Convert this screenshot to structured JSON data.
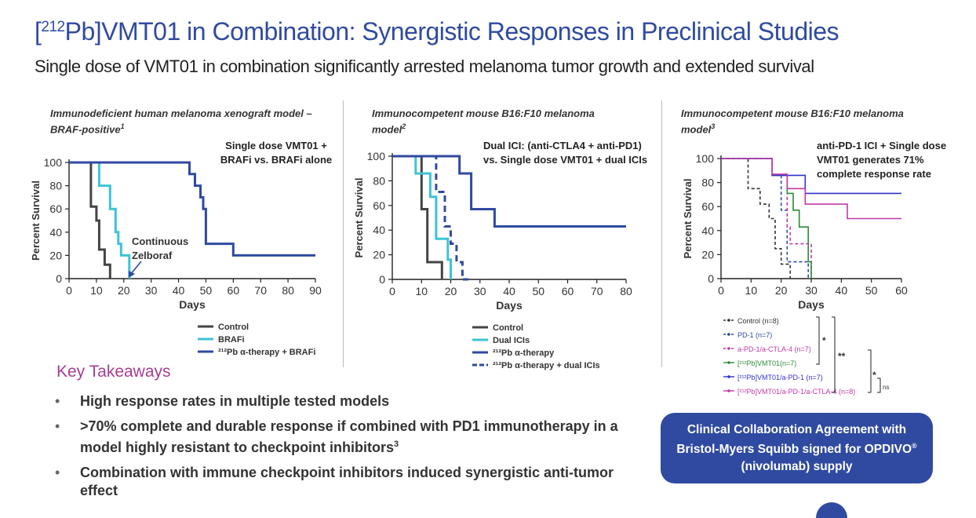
{
  "header": {
    "title_sup": "212",
    "title_rest": "Pb]VMT01 in Combination: Synergistic Responses in Preclinical Studies",
    "title_open": "[",
    "subtitle": "Single dose of VMT01 in combination significantly arrested melanoma tumor growth and extended survival"
  },
  "chart_data": [
    {
      "type": "line",
      "subtype": "kaplan-meier",
      "title_line1": "Immunodeficient human melanoma xenograft model –",
      "title_line2": "BRAF-positive",
      "title_sup": "1",
      "xlabel": "Days",
      "ylabel": "Percent Survival",
      "xlim": [
        0,
        90
      ],
      "ylim": [
        0,
        100
      ],
      "xticks": [
        0,
        10,
        20,
        30,
        40,
        50,
        60,
        70,
        80,
        90
      ],
      "yticks": [
        0,
        20,
        40,
        60,
        80,
        100
      ],
      "annotation_line1": "Single dose VMT01 +",
      "annotation_line2": "BRAFi vs. BRAFi alone",
      "arrow_note_line1": "Continuous",
      "arrow_note_line2": "Zelboraf",
      "legend": [
        "Control",
        "BRAFi",
        "²¹²Pb α-therapy + BRAFi"
      ],
      "series": [
        {
          "name": "Control",
          "color": "#444444",
          "dash": false,
          "x": [
            0,
            8,
            8,
            10,
            10,
            11,
            11,
            13,
            13,
            15,
            15
          ],
          "y": [
            100,
            100,
            62,
            62,
            50,
            50,
            25,
            25,
            12,
            12,
            0
          ]
        },
        {
          "name": "BRAFi",
          "color": "#3ec3d6",
          "dash": false,
          "x": [
            0,
            11,
            11,
            15,
            15,
            17,
            17,
            18,
            18,
            19,
            19,
            20,
            20,
            22,
            22
          ],
          "y": [
            100,
            100,
            80,
            80,
            60,
            60,
            40,
            40,
            30,
            30,
            20,
            20,
            20,
            20,
            0
          ]
        },
        {
          "name": "²¹²Pb α-therapy + BRAFi",
          "color": "#2f4aa0",
          "dash": false,
          "x": [
            0,
            44,
            44,
            46,
            46,
            48,
            48,
            49,
            49,
            50,
            50,
            60,
            60,
            90
          ],
          "y": [
            100,
            100,
            90,
            90,
            80,
            80,
            70,
            70,
            60,
            60,
            30,
            30,
            20,
            20
          ]
        }
      ]
    },
    {
      "type": "line",
      "subtype": "kaplan-meier",
      "title_line1": "Immunocompetent mouse B16:F10 melanoma",
      "title_line2": "model",
      "title_sup": "2",
      "xlabel": "Days",
      "ylabel": "Percent Survival",
      "xlim": [
        0,
        80
      ],
      "ylim": [
        0,
        100
      ],
      "xticks": [
        0,
        10,
        20,
        30,
        40,
        50,
        60,
        70,
        80
      ],
      "yticks": [
        0,
        20,
        40,
        60,
        80,
        100
      ],
      "annotation_line1": "Dual ICI: (anti-CTLA4 + anti-PD1)",
      "annotation_line2": "vs.  Single dose VMT01 + dual ICIs",
      "legend": [
        "Control",
        "Dual ICIs",
        "²¹²Pb α-therapy",
        "²¹²Pb α-therapy + dual ICIs"
      ],
      "series": [
        {
          "name": "Control",
          "color": "#444444",
          "dash": false,
          "x": [
            0,
            10,
            10,
            12,
            12,
            17,
            17
          ],
          "y": [
            100,
            100,
            57,
            57,
            14,
            14,
            0
          ]
        },
        {
          "name": "Dual ICIs",
          "color": "#3ec3d6",
          "dash": false,
          "x": [
            0,
            8,
            8,
            13,
            13,
            15,
            15,
            19,
            19,
            20,
            20
          ],
          "y": [
            100,
            100,
            86,
            86,
            67,
            67,
            33,
            33,
            16,
            16,
            0
          ]
        },
        {
          "name": "²¹²Pb α-therapy",
          "color": "#2f4aa0",
          "dash": false,
          "x": [
            0,
            23,
            23,
            27,
            27,
            29,
            29,
            35,
            35,
            80
          ],
          "y": [
            100,
            100,
            86,
            86,
            57,
            57,
            57,
            57,
            43,
            43
          ]
        },
        {
          "name": "²¹²Pb α-therapy + dual ICIs",
          "color": "#2f4aa0",
          "dash": true,
          "x": [
            0,
            15,
            15,
            18,
            18,
            20,
            20,
            22,
            22,
            24,
            24,
            26,
            26
          ],
          "y": [
            100,
            100,
            71,
            71,
            43,
            43,
            29,
            29,
            14,
            14,
            0,
            0,
            0
          ]
        }
      ]
    },
    {
      "type": "line",
      "subtype": "kaplan-meier",
      "title_line1": "Immunocompetent mouse B16:F10 melanoma",
      "title_line2": "model",
      "title_sup": "3",
      "xlabel": "Days",
      "ylabel": "Percent Survival",
      "xlim": [
        0,
        60
      ],
      "ylim": [
        0,
        100
      ],
      "xticks": [
        0,
        10,
        20,
        30,
        40,
        50,
        60
      ],
      "yticks": [
        0,
        20,
        40,
        60,
        80,
        100
      ],
      "annotation_line1": "anti-PD-1 ICI + Single dose",
      "annotation_line2": "VMT01 generates 71%",
      "annotation_line3": "complete response rate",
      "legend": [
        "Control (n=8)",
        "PD-1 (n=7)",
        "a-PD-1/a-CTLA-4 (n=7)",
        "[²¹²Pb]VMT01(n=7)",
        "[²¹²Pb]VMT01/a-PD-1 (n=7)",
        "[²¹²Pb]VMT01/a-PD-1/a-CTLA-4 (n=8)"
      ],
      "significance": [
        "*",
        "**",
        "*",
        "ns"
      ],
      "series": [
        {
          "name": "Control (n=8)",
          "color": "#333333",
          "dash": true,
          "x": [
            0,
            9,
            9,
            13,
            13,
            16,
            16,
            18,
            18,
            20,
            20,
            23,
            23
          ],
          "y": [
            100,
            100,
            75,
            75,
            62,
            62,
            50,
            50,
            25,
            25,
            12,
            12,
            0
          ]
        },
        {
          "name": "PD-1 (n=7)",
          "color": "#2f4aa0",
          "dash": true,
          "x": [
            0,
            17,
            17,
            20,
            20,
            22,
            22,
            29,
            29
          ],
          "y": [
            100,
            100,
            86,
            86,
            57,
            57,
            14,
            14,
            0
          ]
        },
        {
          "name": "a-PD-1/a-CTLA-4 (n=7)",
          "color": "#c13aa7",
          "dash": true,
          "x": [
            0,
            17,
            17,
            22,
            22,
            23,
            23,
            30,
            30
          ],
          "y": [
            100,
            100,
            86,
            86,
            43,
            43,
            29,
            29,
            0
          ]
        },
        {
          "name": "[²¹²Pb]VMT01(n=7)",
          "color": "#2e8b3a",
          "dash": false,
          "x": [
            0,
            17,
            17,
            22,
            22,
            24,
            24,
            26,
            26,
            29,
            29,
            30,
            30
          ],
          "y": [
            100,
            100,
            86,
            86,
            71,
            71,
            57,
            57,
            43,
            43,
            14,
            14,
            0
          ]
        },
        {
          "name": "[²¹²Pb]VMT01/a-PD-1 (n=7)",
          "color": "#3333cc",
          "dash": false,
          "x": [
            0,
            17,
            17,
            28,
            28,
            60
          ],
          "y": [
            100,
            100,
            86,
            86,
            71,
            71
          ]
        },
        {
          "name": "[²¹²Pb]VMT01/a-PD-1/a-CTLA-4 (n=8)",
          "color": "#c13aa7",
          "dash": false,
          "x": [
            0,
            17,
            17,
            22,
            22,
            28,
            28,
            42,
            42,
            60
          ],
          "y": [
            100,
            100,
            87,
            87,
            75,
            75,
            62,
            62,
            50,
            50
          ]
        }
      ]
    }
  ],
  "takeaways": {
    "heading": "Key Takeaways",
    "bullet_char": "•",
    "items": [
      {
        "text": "High response rates in multiple tested models",
        "sup": ""
      },
      {
        "text": ">70% complete and durable response if combined with PD1 immunotherapy in a model highly resistant to checkpoint inhibitors",
        "sup": "3"
      },
      {
        "text": "Combination with immune checkpoint inhibitors induced synergistic anti-tumor effect",
        "sup": ""
      }
    ]
  },
  "callout": {
    "line1": "Clinical Collaboration Agreement with",
    "line2": "Bristol-Myers Squibb signed for OPDIVO",
    "line2_sup": "®",
    "line3": "(nivolumab) supply"
  },
  "colors": {
    "brand_blue": "#2f4aa0",
    "accent_magenta": "#a83c93",
    "cyan": "#3ec3d6"
  }
}
